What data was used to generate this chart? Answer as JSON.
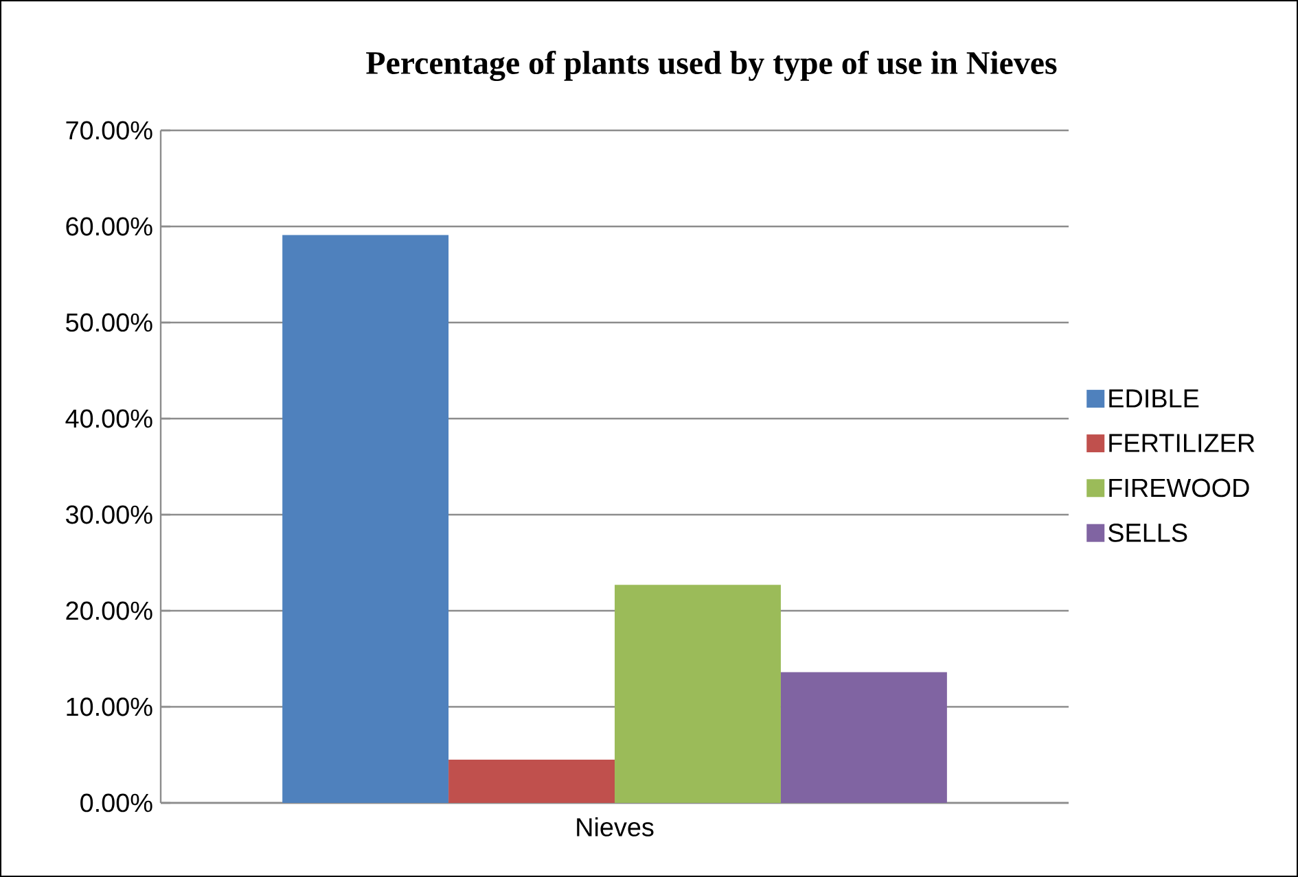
{
  "chart_data": {
    "type": "bar",
    "title": "Percentage of plants used by type of use in Nieves",
    "categories": [
      "Nieves"
    ],
    "series": [
      {
        "name": "EDIBLE",
        "color": "#4f81bd",
        "values": [
          59.1
        ]
      },
      {
        "name": "FERTILIZER",
        "color": "#c0504d",
        "values": [
          4.5
        ]
      },
      {
        "name": "FIREWOOD",
        "color": "#9bbb59",
        "values": [
          22.7
        ]
      },
      {
        "name": "SELLS",
        "color": "#8064a2",
        "values": [
          13.6
        ]
      }
    ],
    "ylim": [
      0,
      70
    ],
    "yticks": [
      {
        "value": 0,
        "label": "0.00%"
      },
      {
        "value": 10,
        "label": "10.00%"
      },
      {
        "value": 20,
        "label": "20.00%"
      },
      {
        "value": 30,
        "label": "30.00%"
      },
      {
        "value": 40,
        "label": "40.00%"
      },
      {
        "value": 50,
        "label": "50.00%"
      },
      {
        "value": 60,
        "label": "60.00%"
      },
      {
        "value": 70,
        "label": "70.00%"
      }
    ],
    "grid": "y",
    "legend": "right"
  }
}
